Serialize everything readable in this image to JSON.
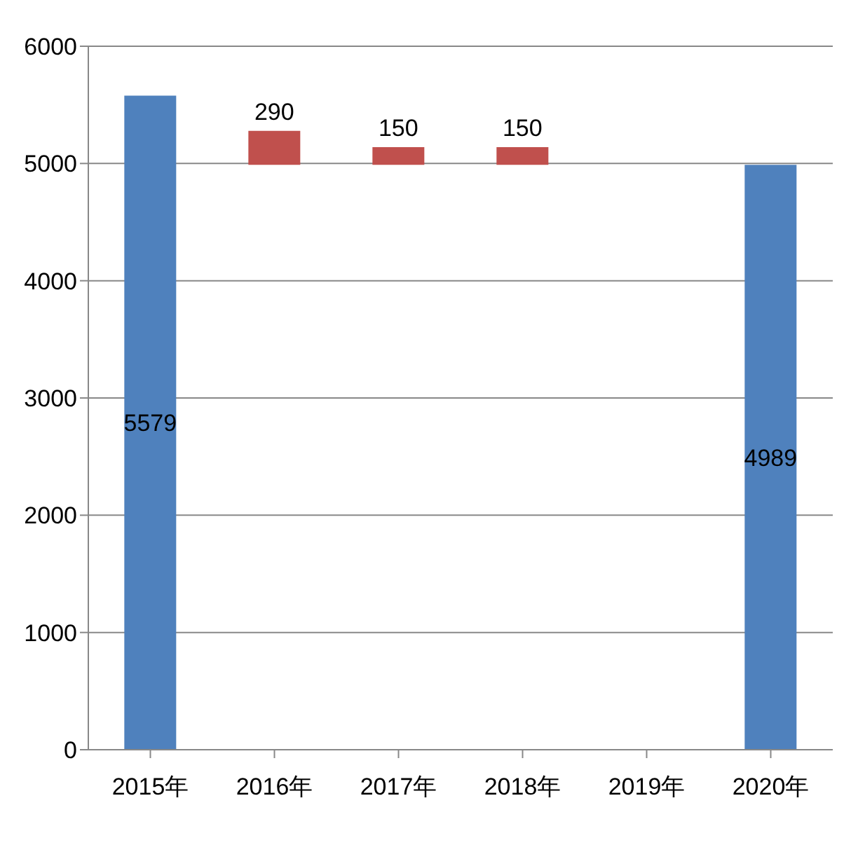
{
  "chart_data": {
    "type": "bar",
    "categories": [
      "2015年",
      "2016年",
      "2017年",
      "2018年",
      "2019年",
      "2020年"
    ],
    "values": [
      5579,
      290,
      150,
      150,
      null,
      4989
    ],
    "base": [
      0,
      4989,
      4989,
      4989,
      null,
      0
    ],
    "colors": [
      "#4f81bd",
      "#c0504d",
      "#c0504d",
      "#c0504d",
      "#c0504d",
      "#4f81bd"
    ],
    "ylim": [
      0,
      6000
    ],
    "yticks": [
      0,
      1000,
      2000,
      3000,
      4000,
      5000,
      6000
    ],
    "grid": "y",
    "data_labels": true
  }
}
